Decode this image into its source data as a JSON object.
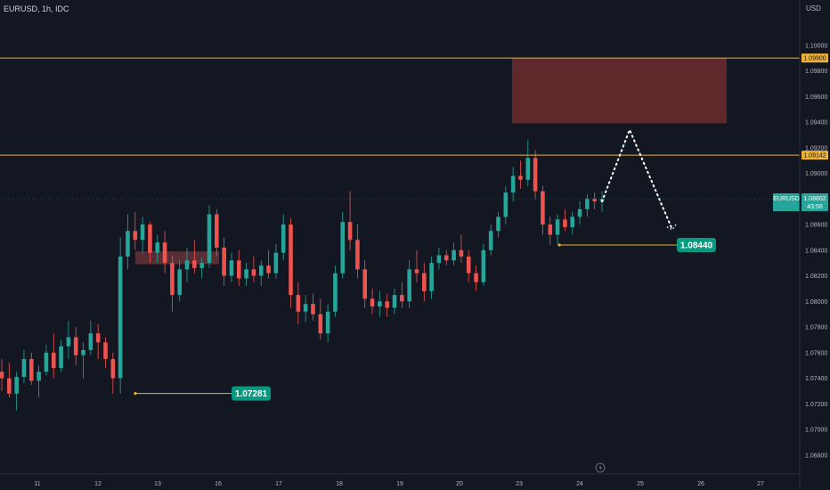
{
  "header": {
    "symbol": "EURUSD, 1h, IDC",
    "currency": "USD"
  },
  "price_tag": {
    "symbol": "EURUSD",
    "price": "1.08802",
    "countdown": "43:56"
  },
  "callouts": [
    {
      "label": "1.07281",
      "value": 1.07281
    },
    {
      "label": "1.08440",
      "value": 1.0844
    }
  ],
  "levels": [
    {
      "label": "1.09900",
      "value": 1.099
    },
    {
      "label": "1.09142",
      "value": 1.09142
    }
  ],
  "colors": {
    "background": "#131722",
    "bull": "#26a69a",
    "bear": "#ef5350",
    "level_line": "#f0b232",
    "zone_fill": "#6d2b2b",
    "callout": "#089981"
  },
  "chart_data": {
    "type": "candlestick",
    "title": "EURUSD, 1h, IDC",
    "ylabel": "USD",
    "ylim": [
      1.0668,
      1.1011
    ],
    "y_ticks": [
      "1.06800",
      "1.07000",
      "1.07200",
      "1.07400",
      "1.07600",
      "1.07800",
      "1.08000",
      "1.08200",
      "1.08400",
      "1.08600",
      "1.08800",
      "1.09000",
      "1.09200",
      "1.09400",
      "1.09600",
      "1.09800",
      "1.10000"
    ],
    "x_ticks": [
      "11",
      "12",
      "13",
      "16",
      "17",
      "18",
      "19",
      "20",
      "23",
      "24",
      "25",
      "26",
      "27"
    ],
    "current_price": 1.08802,
    "horizontal_levels": [
      1.099,
      1.09142
    ],
    "supply_zone": {
      "from": 1.0939,
      "to": 1.099
    },
    "broken_zone": {
      "from": 1.0829,
      "to": 1.0839
    },
    "marked_lows": [
      1.07281,
      1.0844
    ],
    "projection": [
      [
        1.0878,
        1.0934
      ],
      [
        1.0934,
        1.0856
      ]
    ],
    "ohlc_approx": [
      [
        1.0745,
        1.0755,
        1.073,
        1.074
      ],
      [
        1.074,
        1.0752,
        1.0725,
        1.0728
      ],
      [
        1.0728,
        1.0745,
        1.0715,
        1.0741
      ],
      [
        1.0741,
        1.0762,
        1.0736,
        1.0755
      ],
      [
        1.0755,
        1.076,
        1.0735,
        1.0738
      ],
      [
        1.0738,
        1.075,
        1.0725,
        1.0745
      ],
      [
        1.0745,
        1.0766,
        1.0742,
        1.076
      ],
      [
        1.076,
        1.0775,
        1.074,
        1.0748
      ],
      [
        1.0748,
        1.077,
        1.0745,
        1.0765
      ],
      [
        1.0765,
        1.0785,
        1.0755,
        1.0772
      ],
      [
        1.0772,
        1.078,
        1.075,
        1.0758
      ],
      [
        1.0758,
        1.0768,
        1.074,
        1.0762
      ],
      [
        1.0762,
        1.0785,
        1.0758,
        1.0775
      ],
      [
        1.0775,
        1.0782,
        1.0755,
        1.0768
      ],
      [
        1.0768,
        1.0772,
        1.0748,
        1.0755
      ],
      [
        1.0755,
        1.076,
        1.0728,
        1.074
      ],
      [
        1.074,
        1.085,
        1.0728,
        1.0835
      ],
      [
        1.0835,
        1.0868,
        1.0825,
        1.0855
      ],
      [
        1.0855,
        1.087,
        1.084,
        1.0848
      ],
      [
        1.0848,
        1.0866,
        1.0838,
        1.086
      ],
      [
        1.086,
        1.0862,
        1.083,
        1.0838
      ],
      [
        1.0838,
        1.0852,
        1.083,
        1.0846
      ],
      [
        1.0846,
        1.0855,
        1.0822,
        1.083
      ],
      [
        1.083,
        1.0836,
        1.0792,
        1.0805
      ],
      [
        1.0805,
        1.0832,
        1.08,
        1.0825
      ],
      [
        1.0825,
        1.0842,
        1.0815,
        1.0832
      ],
      [
        1.0832,
        1.0848,
        1.0822,
        1.0826
      ],
      [
        1.0826,
        1.0834,
        1.0818,
        1.083
      ],
      [
        1.083,
        1.0875,
        1.0826,
        1.0868
      ],
      [
        1.0868,
        1.0872,
        1.0835,
        1.0842
      ],
      [
        1.0842,
        1.085,
        1.0812,
        1.082
      ],
      [
        1.082,
        1.0838,
        1.0815,
        1.0832
      ],
      [
        1.0832,
        1.084,
        1.0812,
        1.0818
      ],
      [
        1.0818,
        1.083,
        1.0812,
        1.0825
      ],
      [
        1.0825,
        1.0835,
        1.0815,
        1.082
      ],
      [
        1.082,
        1.0832,
        1.0812,
        1.0828
      ],
      [
        1.0828,
        1.084,
        1.0818,
        1.0822
      ],
      [
        1.0822,
        1.0845,
        1.0818,
        1.0838
      ],
      [
        1.0838,
        1.0868,
        1.0832,
        1.086
      ],
      [
        1.086,
        1.0865,
        1.0795,
        1.0805
      ],
      [
        1.0805,
        1.0815,
        1.0782,
        1.0792
      ],
      [
        1.0792,
        1.0805,
        1.0784,
        1.0798
      ],
      [
        1.0798,
        1.0806,
        1.0785,
        1.079
      ],
      [
        1.079,
        1.0802,
        1.077,
        1.0775
      ],
      [
        1.0775,
        1.0798,
        1.0768,
        1.0792
      ],
      [
        1.0792,
        1.0828,
        1.0788,
        1.0822
      ],
      [
        1.0822,
        1.087,
        1.0818,
        1.0862
      ],
      [
        1.0862,
        1.0886,
        1.084,
        1.0848
      ],
      [
        1.0848,
        1.086,
        1.0818,
        1.0825
      ],
      [
        1.0825,
        1.0832,
        1.0795,
        1.0802
      ],
      [
        1.0802,
        1.081,
        1.079,
        1.0796
      ],
      [
        1.0796,
        1.0808,
        1.0788,
        1.08
      ],
      [
        1.08,
        1.0806,
        1.0788,
        1.0795
      ],
      [
        1.0795,
        1.081,
        1.079,
        1.0805
      ],
      [
        1.0805,
        1.0815,
        1.0795,
        1.08
      ],
      [
        1.08,
        1.0832,
        1.0795,
        1.0825
      ],
      [
        1.0825,
        1.084,
        1.0815,
        1.0822
      ],
      [
        1.0822,
        1.083,
        1.08,
        1.0808
      ],
      [
        1.0808,
        1.0835,
        1.0802,
        1.083
      ],
      [
        1.083,
        1.0842,
        1.0825,
        1.0836
      ],
      [
        1.0836,
        1.084,
        1.0828,
        1.0832
      ],
      [
        1.0832,
        1.0846,
        1.0828,
        1.084
      ],
      [
        1.084,
        1.0852,
        1.083,
        1.0835
      ],
      [
        1.0835,
        1.084,
        1.0815,
        1.0822
      ],
      [
        1.0822,
        1.0828,
        1.0808,
        1.0815
      ],
      [
        1.0815,
        1.0845,
        1.0812,
        1.084
      ],
      [
        1.084,
        1.086,
        1.0836,
        1.0855
      ],
      [
        1.0855,
        1.087,
        1.085,
        1.0866
      ],
      [
        1.0866,
        1.089,
        1.086,
        1.0885
      ],
      [
        1.0885,
        1.0905,
        1.0878,
        1.0898
      ],
      [
        1.0898,
        1.091,
        1.0888,
        1.0895
      ],
      [
        1.0895,
        1.0926,
        1.089,
        1.0912
      ],
      [
        1.0912,
        1.0918,
        1.088,
        1.0886
      ],
      [
        1.0886,
        1.089,
        1.0852,
        1.086
      ],
      [
        1.086,
        1.0866,
        1.0844,
        1.0852
      ],
      [
        1.0852,
        1.0868,
        1.0845,
        1.0864
      ],
      [
        1.0864,
        1.0872,
        1.0855,
        1.0858
      ],
      [
        1.0858,
        1.087,
        1.0852,
        1.0866
      ],
      [
        1.0866,
        1.0878,
        1.086,
        1.0872
      ],
      [
        1.0872,
        1.0884,
        1.0866,
        1.088
      ],
      [
        1.088,
        1.0885,
        1.0872,
        1.0878
      ],
      [
        1.0878,
        1.0886,
        1.087,
        1.088
      ]
    ]
  }
}
